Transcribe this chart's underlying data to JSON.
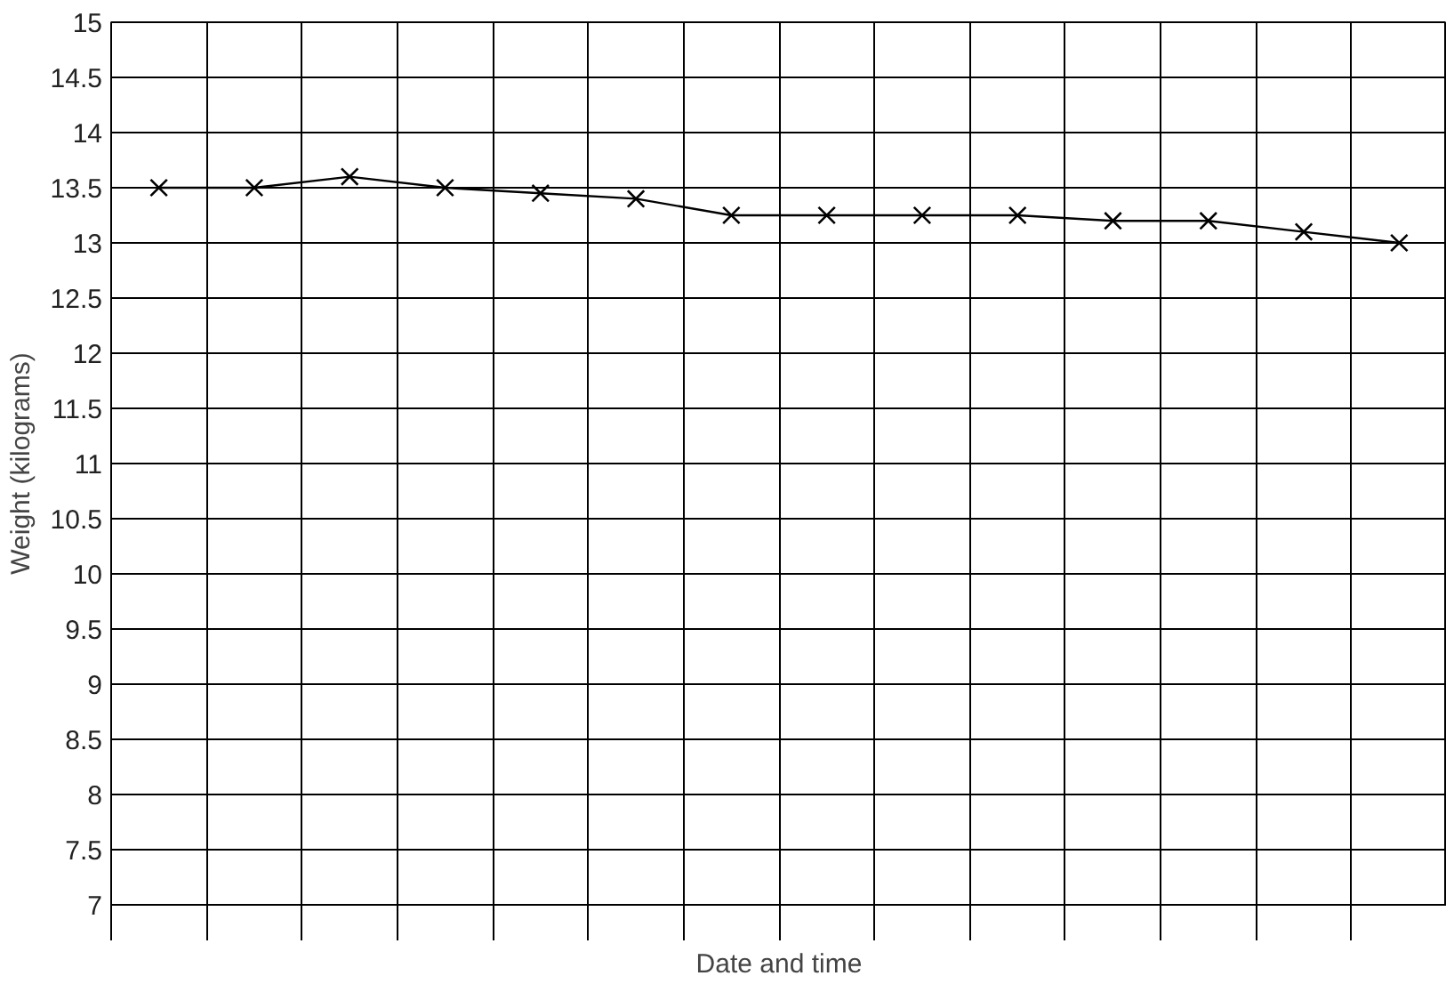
{
  "chart_data": {
    "type": "line",
    "xlabel": "Date and time",
    "ylabel": "Weight (kilograms)",
    "categories": [
      null,
      null,
      null,
      null,
      null,
      null,
      null,
      null,
      null,
      null,
      null,
      null,
      null,
      null
    ],
    "series": [
      {
        "color": "#000000",
        "values": [
          13.5,
          13.5,
          13.6,
          13.5,
          13.45,
          13.4,
          13.25,
          13.25,
          13.25,
          13.25,
          13.2,
          13.2,
          13.1,
          13.0
        ]
      }
    ],
    "ylim": [
      7,
      15
    ],
    "yticks": [
      7,
      7.5,
      8,
      8.5,
      9,
      9.5,
      10,
      10.5,
      11,
      11.5,
      12,
      12.5,
      13,
      13.5,
      14,
      14.5,
      15
    ],
    "grid": true,
    "marker": "cross",
    "line_style": "solid"
  }
}
